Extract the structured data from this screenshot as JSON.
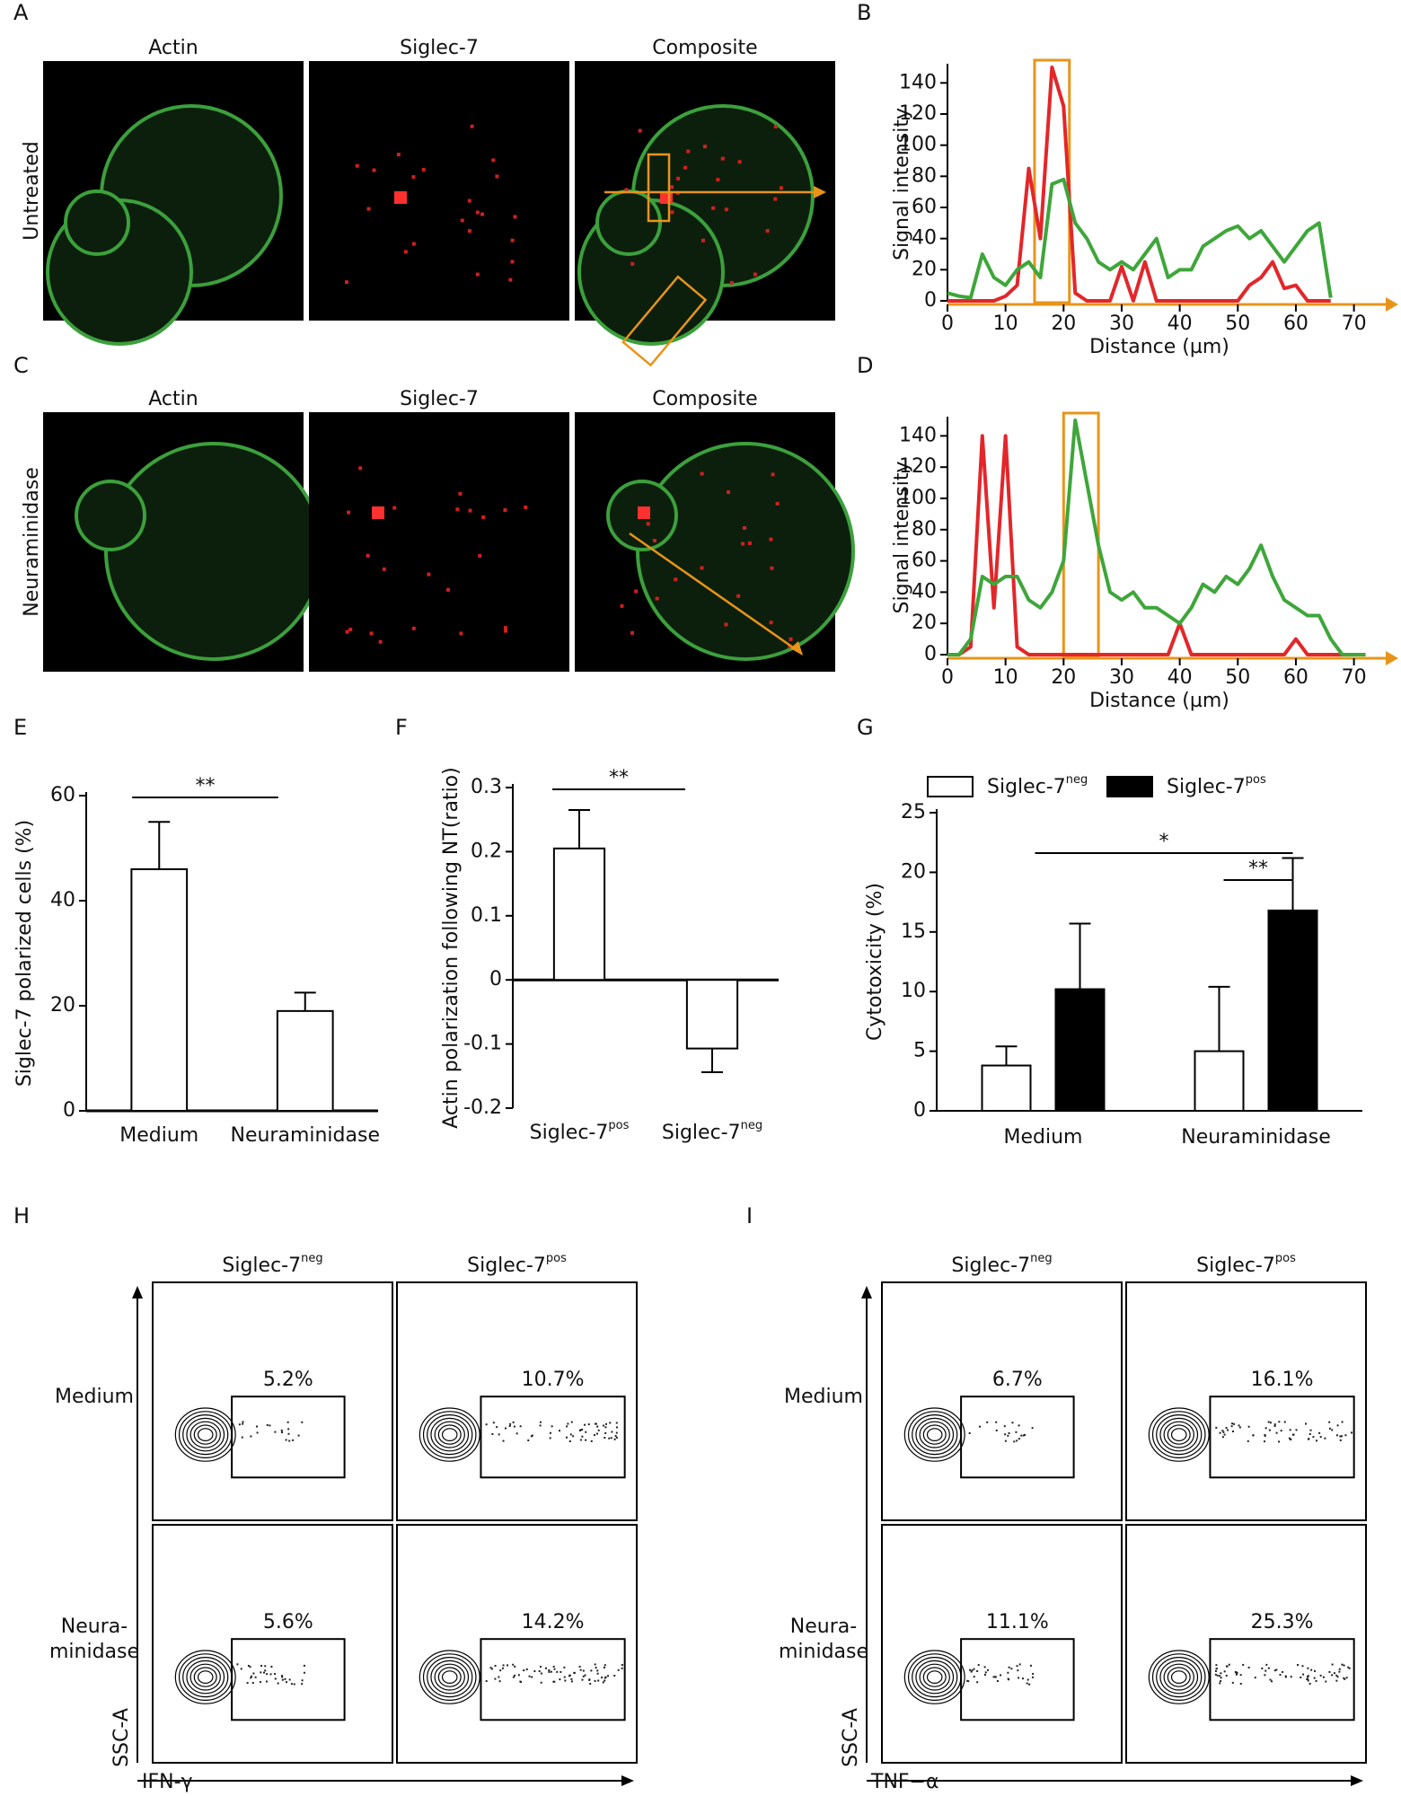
{
  "panel_labels": [
    "A",
    "B",
    "C",
    "D",
    "E",
    "F",
    "G",
    "H",
    "I"
  ],
  "microscopy": {
    "columns": [
      "Actin",
      "Siglec-7",
      "Composite"
    ],
    "rows": [
      "Untreated",
      "Neuraminidase"
    ]
  },
  "chart_data": [
    {
      "type": "line",
      "x_label": "Distance (µm)",
      "y_label": "Signal intensity",
      "x": [
        0,
        2,
        4,
        6,
        8,
        10,
        12,
        14,
        16,
        18,
        20,
        22,
        24,
        26,
        28,
        30,
        32,
        34,
        36,
        38,
        40,
        42,
        44,
        46,
        48,
        50,
        52,
        54,
        56,
        58,
        60,
        62,
        64,
        66
      ],
      "series": [
        {
          "color": "#e3262a",
          "values": [
            0,
            0,
            0,
            0,
            0,
            3,
            10,
            85,
            40,
            150,
            125,
            5,
            0,
            0,
            0,
            22,
            0,
            25,
            0,
            0,
            0,
            0,
            0,
            0,
            0,
            0,
            10,
            15,
            25,
            8,
            10,
            0,
            0,
            0
          ]
        },
        {
          "color": "#3ea63a",
          "values": [
            5,
            3,
            2,
            30,
            15,
            10,
            20,
            25,
            15,
            75,
            78,
            50,
            40,
            25,
            20,
            25,
            20,
            30,
            40,
            15,
            20,
            20,
            35,
            40,
            45,
            48,
            40,
            45,
            35,
            25,
            35,
            45,
            50,
            2
          ]
        }
      ],
      "xlim": [
        0,
        73
      ],
      "ylim": [
        0,
        150
      ],
      "xticks": [
        0,
        10,
        20,
        30,
        40,
        50,
        60,
        70
      ],
      "yticks": [
        0,
        20,
        40,
        60,
        80,
        100,
        120,
        140
      ],
      "highlight": [
        15,
        21
      ]
    },
    {
      "type": "line",
      "x_label": "Distance (µm)",
      "y_label": "Signal intensity",
      "x": [
        0,
        2,
        4,
        6,
        8,
        10,
        12,
        14,
        16,
        18,
        20,
        22,
        24,
        26,
        28,
        30,
        32,
        34,
        36,
        38,
        40,
        42,
        44,
        46,
        48,
        50,
        52,
        54,
        56,
        58,
        60,
        62,
        64,
        66,
        68,
        70,
        72
      ],
      "series": [
        {
          "color": "#e3262a",
          "values": [
            0,
            0,
            5,
            140,
            30,
            140,
            5,
            0,
            0,
            0,
            0,
            0,
            0,
            0,
            0,
            0,
            0,
            0,
            0,
            0,
            20,
            0,
            0,
            0,
            0,
            0,
            0,
            0,
            0,
            0,
            10,
            0,
            0,
            0,
            0,
            0,
            0
          ]
        },
        {
          "color": "#3ea63a",
          "values": [
            0,
            0,
            10,
            50,
            45,
            50,
            50,
            35,
            30,
            40,
            60,
            150,
            110,
            70,
            40,
            35,
            40,
            30,
            30,
            25,
            20,
            30,
            45,
            40,
            50,
            45,
            55,
            70,
            50,
            35,
            30,
            25,
            25,
            10,
            0,
            0,
            0
          ]
        }
      ],
      "xlim": [
        0,
        73
      ],
      "ylim": [
        0,
        150
      ],
      "xticks": [
        0,
        10,
        20,
        30,
        40,
        50,
        60,
        70
      ],
      "yticks": [
        0,
        20,
        40,
        60,
        80,
        100,
        120,
        140
      ],
      "highlight": [
        20,
        26
      ]
    },
    {
      "type": "bar",
      "y_label": "Siglec-7 polarized cells (%)",
      "categories": [
        "Medium",
        "Neuraminidase"
      ],
      "values": [
        46,
        19
      ],
      "errors": [
        9,
        3.5
      ],
      "ylim": [
        0,
        60
      ],
      "yticks": [
        0,
        20,
        40,
        60
      ],
      "significance": [
        "**"
      ]
    },
    {
      "type": "bar",
      "y_label": "Actin polarization following NT(ratio)",
      "categories": [
        "Siglec-7",
        "Siglec-7"
      ],
      "category_superscripts": [
        "pos",
        "neg"
      ],
      "values": [
        0.205,
        -0.107
      ],
      "errors": [
        0.06,
        0.037
      ],
      "ylim": [
        -0.2,
        0.3
      ],
      "yticks": [
        -0.2,
        -0.1,
        0,
        0.1,
        0.2,
        0.3
      ],
      "significance": [
        "**"
      ]
    },
    {
      "type": "grouped_bar",
      "y_label": "Cytotoxicity (%)",
      "categories": [
        "Medium",
        "Neuraminidase"
      ],
      "series": [
        {
          "name": "Siglec-7",
          "superscript": "neg",
          "color": "#ffffff",
          "values": [
            3.8,
            5.0
          ],
          "errors": [
            1.6,
            5.4
          ]
        },
        {
          "name": "Siglec-7",
          "superscript": "pos",
          "color": "#000000",
          "values": [
            10.2,
            16.8
          ],
          "errors": [
            5.5,
            4.4
          ]
        }
      ],
      "ylim": [
        0,
        25
      ],
      "yticks": [
        0,
        5,
        10,
        15,
        20,
        25
      ],
      "significance": [
        "*",
        "**"
      ]
    }
  ],
  "flow_panels": [
    {
      "x_label": "IFN-γ",
      "y_label": "SSC-A",
      "columns": [
        {
          "name": "Siglec-7",
          "superscript": "neg"
        },
        {
          "name": "Siglec-7",
          "superscript": "pos"
        }
      ],
      "rows": [
        [
          "Medium"
        ],
        [
          "Neura-",
          "minidase"
        ]
      ],
      "gates": [
        [
          "5.2%",
          "10.7%"
        ],
        [
          "5.6%",
          "14.2%"
        ]
      ]
    },
    {
      "x_label": "TNF−α",
      "y_label": "SSC-A",
      "columns": [
        {
          "name": "Siglec-7",
          "superscript": "neg"
        },
        {
          "name": "Siglec-7",
          "superscript": "pos"
        }
      ],
      "rows": [
        [
          "Medium"
        ],
        [
          "Neura-",
          "minidase"
        ]
      ],
      "gates": [
        [
          "6.7%",
          "16.1%"
        ],
        [
          "11.1%",
          "25.3%"
        ]
      ]
    }
  ]
}
